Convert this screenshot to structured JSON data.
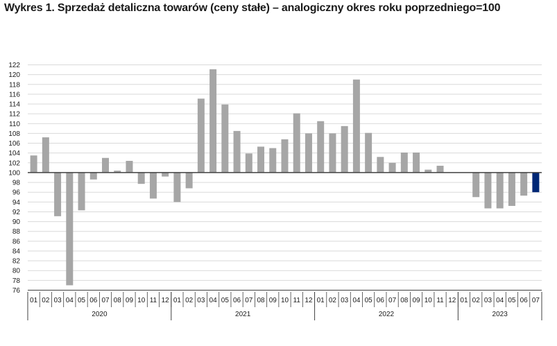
{
  "chart_data": {
    "type": "bar",
    "title": "Wykres 1. Sprzedaż detaliczna towarów (ceny stałe) – analogiczny okres roku poprzedniego=100",
    "baseline": 100,
    "ylim": [
      76,
      122
    ],
    "yticks": [
      76,
      78,
      80,
      82,
      84,
      86,
      88,
      90,
      92,
      94,
      96,
      98,
      100,
      102,
      104,
      106,
      108,
      110,
      112,
      114,
      116,
      118,
      120,
      122
    ],
    "grid": true,
    "months": [
      "01",
      "02",
      "03",
      "04",
      "05",
      "06",
      "07",
      "08",
      "09",
      "10",
      "11",
      "12",
      "01",
      "02",
      "03",
      "04",
      "05",
      "06",
      "07",
      "08",
      "09",
      "10",
      "11",
      "12",
      "01",
      "02",
      "03",
      "04",
      "05",
      "06",
      "07",
      "08",
      "09",
      "10",
      "11",
      "12",
      "01",
      "02",
      "03",
      "04",
      "05",
      "06",
      "07"
    ],
    "years": [
      {
        "label": "2020",
        "count": 12
      },
      {
        "label": "2021",
        "count": 12
      },
      {
        "label": "2022",
        "count": 12
      },
      {
        "label": "2023",
        "count": 7
      }
    ],
    "values": [
      103.5,
      107.2,
      91.1,
      77.0,
      92.3,
      98.6,
      103.0,
      100.4,
      102.4,
      97.7,
      94.7,
      99.2,
      94.0,
      96.8,
      115.1,
      121.1,
      113.9,
      108.5,
      103.9,
      105.3,
      105.0,
      106.8,
      112.1,
      108.0,
      110.5,
      108.0,
      109.5,
      119.0,
      108.1,
      103.2,
      102.0,
      104.1,
      104.1,
      100.6,
      101.4,
      100.0,
      100.0,
      95.0,
      92.7,
      92.7,
      93.2,
      95.3,
      96.0
    ],
    "colors": {
      "bar": "#a6a6a6",
      "highlight": "#002776",
      "grid": "#d9d9d9",
      "axis": "#404040"
    },
    "highlight_index": 42
  }
}
